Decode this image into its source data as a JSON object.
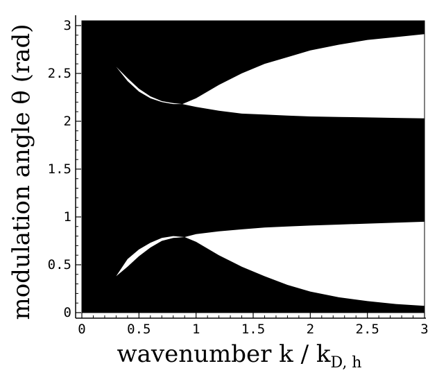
{
  "chart_data": {
    "type": "area",
    "title": "",
    "xlabel": "wavenumber k / k",
    "xlabel_subscript": "D, h",
    "ylabel": "modulation angle  θ (rad)",
    "xlim": [
      0,
      3
    ],
    "ylim": [
      0,
      3.05
    ],
    "xticks": [
      "0",
      "0.5",
      "1",
      "1.5",
      "2",
      "2.5",
      "3"
    ],
    "yticks": [
      "0",
      "0.5",
      "1",
      "1.5",
      "2",
      "2.5",
      "3"
    ],
    "fill_color": "#000000",
    "background_color": "#ffffff",
    "unstable_regions": [
      {
        "name": "upper-lens",
        "upper_curve": {
          "x": [
            0.3,
            0.4,
            0.5,
            0.6,
            0.7,
            0.8,
            0.88
          ],
          "y": [
            2.57,
            2.45,
            2.34,
            2.26,
            2.21,
            2.19,
            2.18
          ]
        },
        "lower_curve": {
          "x": [
            0.3,
            0.4,
            0.5,
            0.6,
            0.7,
            0.8,
            0.88
          ],
          "y": [
            2.57,
            2.42,
            2.31,
            2.24,
            2.2,
            2.18,
            2.18
          ]
        }
      },
      {
        "name": "upper-band",
        "upper_curve": {
          "x": [
            0.88,
            1.0,
            1.2,
            1.4,
            1.6,
            1.8,
            2.0,
            2.25,
            2.5,
            2.75,
            3.0
          ],
          "y": [
            2.18,
            2.24,
            2.38,
            2.5,
            2.6,
            2.67,
            2.74,
            2.8,
            2.85,
            2.88,
            2.91
          ]
        },
        "lower_curve": {
          "x": [
            0.88,
            1.0,
            1.2,
            1.4,
            1.6,
            1.8,
            2.0,
            2.25,
            2.5,
            2.75,
            3.0
          ],
          "y": [
            2.18,
            2.15,
            2.11,
            2.08,
            2.07,
            2.06,
            2.05,
            2.045,
            2.04,
            2.035,
            2.03
          ]
        }
      },
      {
        "name": "lower-lens",
        "upper_curve": {
          "x": [
            0.3,
            0.4,
            0.5,
            0.6,
            0.7,
            0.8,
            0.9
          ],
          "y": [
            0.38,
            0.56,
            0.66,
            0.73,
            0.78,
            0.8,
            0.79
          ]
        },
        "lower_curve": {
          "x": [
            0.3,
            0.4,
            0.5,
            0.6,
            0.7,
            0.8,
            0.9
          ],
          "y": [
            0.38,
            0.48,
            0.59,
            0.68,
            0.75,
            0.78,
            0.79
          ]
        }
      },
      {
        "name": "lower-band",
        "upper_curve": {
          "x": [
            0.9,
            1.0,
            1.2,
            1.4,
            1.6,
            1.8,
            2.0,
            2.25,
            2.5,
            2.75,
            3.0
          ],
          "y": [
            0.79,
            0.82,
            0.85,
            0.87,
            0.89,
            0.9,
            0.91,
            0.92,
            0.93,
            0.94,
            0.95
          ]
        },
        "lower_curve": {
          "x": [
            0.9,
            1.0,
            1.2,
            1.4,
            1.6,
            1.8,
            2.0,
            2.25,
            2.5,
            2.75,
            3.0
          ],
          "y": [
            0.79,
            0.74,
            0.6,
            0.48,
            0.38,
            0.29,
            0.22,
            0.16,
            0.12,
            0.09,
            0.07
          ]
        }
      }
    ]
  }
}
